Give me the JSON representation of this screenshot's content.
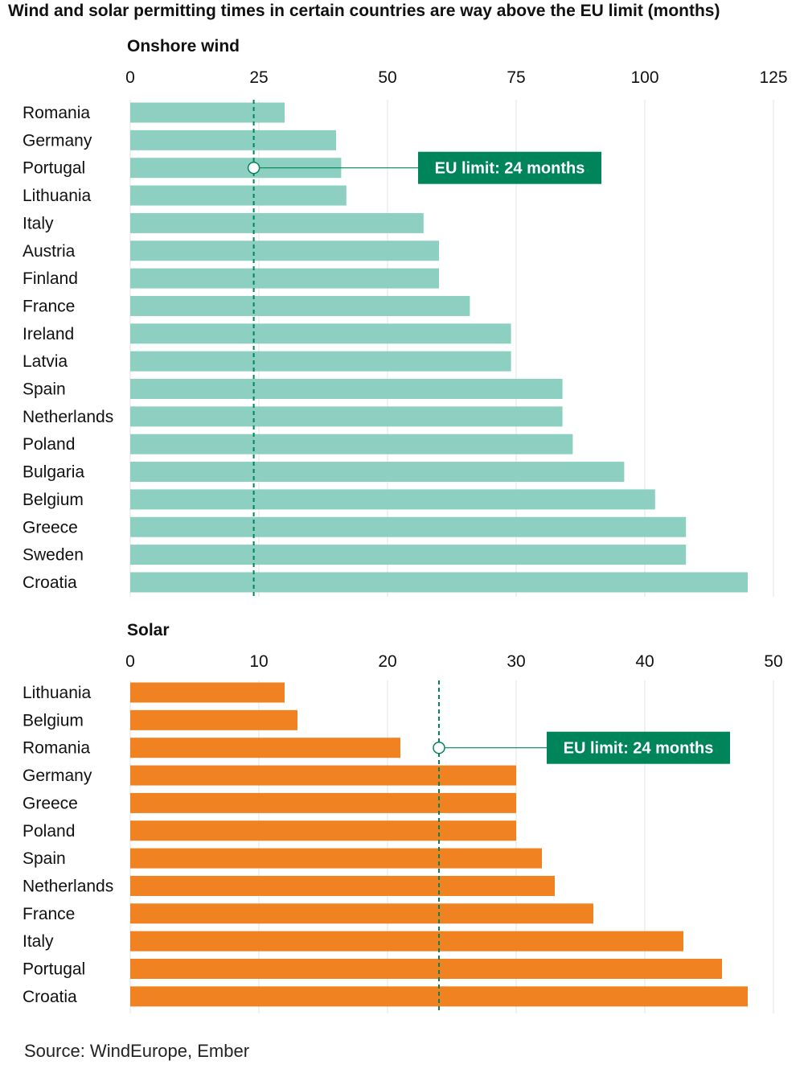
{
  "title": "Wind and solar permitting times in certain countries are way above the EU limit (months)",
  "source": "Source: WindEurope, Ember",
  "colors": {
    "wind": "#8dd0c2",
    "solar": "#f08221",
    "limit": "#00855a",
    "grid": "#e3e3e3"
  },
  "chart_data": [
    {
      "type": "bar",
      "orientation": "horizontal",
      "title": "Onshore wind",
      "categories": [
        "Romania",
        "Germany",
        "Portugal",
        "Lithuania",
        "Italy",
        "Austria",
        "Finland",
        "France",
        "Ireland",
        "Latvia",
        "Spain",
        "Netherlands",
        "Poland",
        "Bulgaria",
        "Belgium",
        "Greece",
        "Sweden",
        "Croatia"
      ],
      "values": [
        30,
        40,
        41,
        42,
        57,
        60,
        60,
        66,
        74,
        74,
        84,
        84,
        86,
        96,
        102,
        108,
        108,
        120
      ],
      "xlim": [
        0,
        125
      ],
      "xticks": [
        0,
        25,
        50,
        75,
        100,
        125
      ],
      "grid": true,
      "reference_line": {
        "value": 24,
        "label": "EU limit: 24 months",
        "anchor_category": "Portugal"
      }
    },
    {
      "type": "bar",
      "orientation": "horizontal",
      "title": "Solar",
      "categories": [
        "Lithuania",
        "Belgium",
        "Romania",
        "Germany",
        "Greece",
        "Poland",
        "Spain",
        "Netherlands",
        "France",
        "Italy",
        "Portugal",
        "Croatia"
      ],
      "values": [
        12,
        13,
        21,
        30,
        30,
        30,
        32,
        33,
        36,
        43,
        46,
        48
      ],
      "xlim": [
        0,
        50
      ],
      "xticks": [
        0,
        10,
        20,
        30,
        40,
        50
      ],
      "grid": true,
      "reference_line": {
        "value": 24,
        "label": "EU limit: 24 months",
        "anchor_category": "Romania"
      }
    }
  ]
}
